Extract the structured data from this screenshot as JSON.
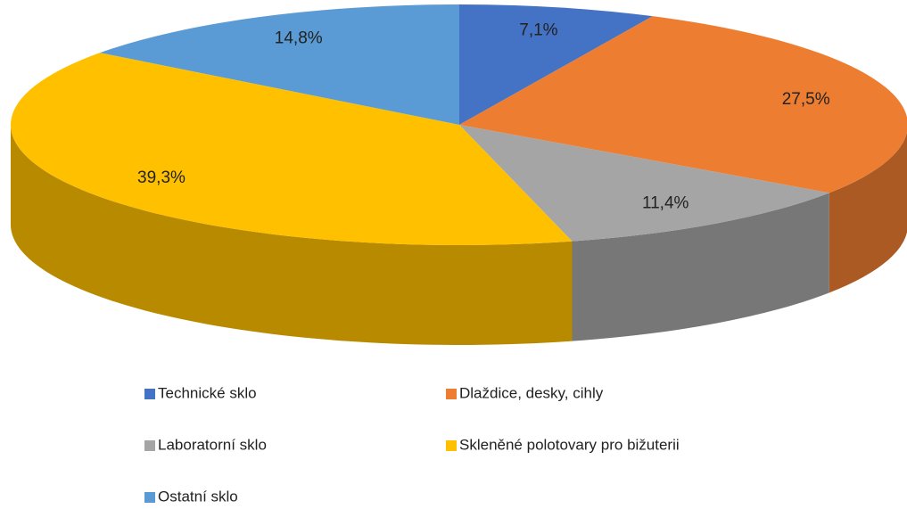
{
  "chart_data": {
    "type": "pie",
    "categories": [
      "Technické sklo",
      "Dlaždice, desky, cihly",
      "Laboratorní sklo",
      "Skleněné polotovary pro bižuterii",
      "Ostatní sklo"
    ],
    "values": [
      7.1,
      27.5,
      11.4,
      39.3,
      14.8
    ],
    "value_labels": [
      "7,1%",
      "27,5%",
      "11,4%",
      "39,3%",
      "14,8%"
    ],
    "colors": [
      "#4472c4",
      "#ed7d31",
      "#a5a5a5",
      "#ffc000",
      "#5b9bd5"
    ]
  }
}
